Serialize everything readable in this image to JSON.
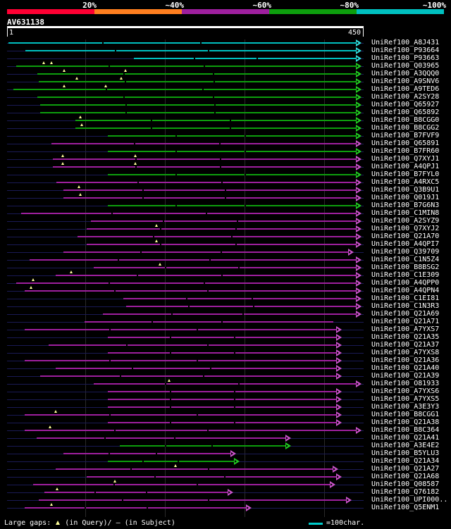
{
  "legend": {
    "labels": [
      "20%",
      "~40%",
      "~60%",
      "~80%",
      "~100%"
    ],
    "colors": [
      "#ff0033",
      "#ff7f1f",
      "#9e1f9e",
      "#0d9e0d",
      "#00c0c0"
    ]
  },
  "query": {
    "name": "AV631138",
    "start_label": "1",
    "end_label": "450",
    "length": 450
  },
  "footer": {
    "gaps_prefix": "Large gaps:",
    "gaps_query": "(in Query)/",
    "gaps_subject": "— (in Subject)",
    "scale_text": "=100char."
  },
  "hits": [
    {
      "name": "UniRef100_A8J431",
      "color": "cyan",
      "start": 1,
      "end": 450,
      "arrow": true,
      "gaps": []
    },
    {
      "name": "UniRef100_P93664",
      "color": "cyan",
      "start": 23,
      "end": 450,
      "arrow": true,
      "gaps": []
    },
    {
      "name": "UniRef100_P93663",
      "color": "cyan",
      "start": 161,
      "end": 450,
      "arrow": true,
      "gaps": []
    },
    {
      "name": "UniRef100_Q03965",
      "color": "green",
      "start": 11,
      "end": 450,
      "arrow": true,
      "gaps": [
        46,
        56
      ]
    },
    {
      "name": "UniRef100_A3QQQ0",
      "color": "green",
      "start": 38,
      "end": 450,
      "arrow": true,
      "gaps": [
        72,
        150
      ]
    },
    {
      "name": "UniRef100_A9SNV6",
      "color": "green",
      "start": 40,
      "end": 450,
      "arrow": true,
      "gaps": [
        88,
        145
      ]
    },
    {
      "name": "UniRef100_A9TED6",
      "color": "green",
      "start": 7,
      "end": 450,
      "arrow": true,
      "gaps": [
        72,
        125
      ]
    },
    {
      "name": "UniRef100_A2SY28",
      "color": "green",
      "start": 38,
      "end": 450,
      "arrow": true,
      "gaps": []
    },
    {
      "name": "UniRef100_Q65927",
      "color": "green",
      "start": 41,
      "end": 450,
      "arrow": true,
      "gaps": []
    },
    {
      "name": "UniRef100_Q65892",
      "color": "green",
      "start": 41,
      "end": 450,
      "arrow": true,
      "gaps": []
    },
    {
      "name": "UniRef100_B8CGG0",
      "color": "green",
      "start": 86,
      "end": 450,
      "arrow": true,
      "gaps": [
        93
      ]
    },
    {
      "name": "UniRef100_B8CGG2",
      "color": "green",
      "start": 86,
      "end": 450,
      "arrow": true,
      "gaps": [
        94
      ]
    },
    {
      "name": "UniRef100_B7FVF9",
      "color": "green",
      "start": 128,
      "end": 450,
      "arrow": true,
      "gaps": []
    },
    {
      "name": "UniRef100_Q65891",
      "color": "purple",
      "start": 56,
      "end": 450,
      "arrow": true,
      "gaps": []
    },
    {
      "name": "UniRef100_B7FR60",
      "color": "green",
      "start": 128,
      "end": 450,
      "arrow": true,
      "gaps": []
    },
    {
      "name": "UniRef100_Q7XYJ1",
      "color": "purple",
      "start": 58,
      "end": 450,
      "arrow": true,
      "gaps": [
        70,
        163
      ]
    },
    {
      "name": "UniRef100_A4QPJ1",
      "color": "purple",
      "start": 58,
      "end": 450,
      "arrow": true,
      "gaps": [
        70,
        163
      ]
    },
    {
      "name": "UniRef100_B7FYL0",
      "color": "green",
      "start": 128,
      "end": 450,
      "arrow": true,
      "gaps": []
    },
    {
      "name": "UniRef100_A4RXC5",
      "color": "purple",
      "start": 62,
      "end": 450,
      "arrow": true,
      "gaps": []
    },
    {
      "name": "UniRef100_Q3B9U1",
      "color": "purple",
      "start": 71,
      "end": 450,
      "arrow": true,
      "gaps": [
        91
      ]
    },
    {
      "name": "UniRef100_Q019J1",
      "color": "purple",
      "start": 71,
      "end": 450,
      "arrow": true,
      "gaps": [
        93
      ]
    },
    {
      "name": "UniRef100_B7G6N3",
      "color": "green",
      "start": 128,
      "end": 450,
      "arrow": true,
      "gaps": []
    },
    {
      "name": "UniRef100_C1MIN8",
      "color": "purple",
      "start": 17,
      "end": 450,
      "arrow": true,
      "gaps": []
    },
    {
      "name": "UniRef100_A2SYZ9",
      "color": "purple",
      "start": 106,
      "end": 450,
      "arrow": true,
      "gaps": []
    },
    {
      "name": "UniRef100_Q7XYJ2",
      "color": "purple",
      "start": 101,
      "end": 450,
      "arrow": true,
      "gaps": [
        190
      ]
    },
    {
      "name": "UniRef100_Q21A70",
      "color": "purple",
      "start": 89,
      "end": 450,
      "arrow": true,
      "gaps": []
    },
    {
      "name": "UniRef100_A4QPI7",
      "color": "purple",
      "start": 101,
      "end": 450,
      "arrow": true,
      "gaps": [
        190
      ]
    },
    {
      "name": "UniRef100_Q39709",
      "color": "purple",
      "start": 71,
      "end": 440,
      "arrow": true,
      "gaps": []
    },
    {
      "name": "UniRef100_C1N5Z4",
      "color": "purple",
      "start": 28,
      "end": 450,
      "arrow": true,
      "gaps": []
    },
    {
      "name": "UniRef100_B8BSG2",
      "color": "purple",
      "start": 110,
      "end": 450,
      "arrow": true,
      "gaps": [
        194
      ]
    },
    {
      "name": "UniRef100_C1E309",
      "color": "purple",
      "start": 61,
      "end": 450,
      "arrow": true,
      "gaps": [
        81
      ]
    },
    {
      "name": "UniRef100_A4QPP0",
      "color": "purple",
      "start": 11,
      "end": 450,
      "arrow": true,
      "gaps": [
        32
      ]
    },
    {
      "name": "UniRef100_A4QPN4",
      "color": "purple",
      "start": 22,
      "end": 450,
      "arrow": true,
      "gaps": [
        30
      ]
    },
    {
      "name": "UniRef100_C1EI81",
      "color": "purple",
      "start": 147,
      "end": 450,
      "arrow": true,
      "gaps": []
    },
    {
      "name": "UniRef100_C1N3R3",
      "color": "purple",
      "start": 151,
      "end": 450,
      "arrow": true,
      "gaps": []
    },
    {
      "name": "UniRef100_Q21A69",
      "color": "purple",
      "start": 121,
      "end": 450,
      "arrow": true,
      "gaps": []
    },
    {
      "name": "UniRef100_Q21A71",
      "color": "purple",
      "start": 98,
      "end": 415,
      "arrow": false,
      "gaps": []
    },
    {
      "name": "UniRef100_A7YXS7",
      "color": "purple",
      "start": 22,
      "end": 425,
      "arrow": true,
      "gaps": []
    },
    {
      "name": "UniRef100_Q21A35",
      "color": "purple",
      "start": 128,
      "end": 425,
      "arrow": true,
      "gaps": []
    },
    {
      "name": "UniRef100_Q21A37",
      "color": "purple",
      "start": 52,
      "end": 425,
      "arrow": true,
      "gaps": []
    },
    {
      "name": "UniRef100_A7YXS8",
      "color": "purple",
      "start": 128,
      "end": 425,
      "arrow": true,
      "gaps": []
    },
    {
      "name": "UniRef100_Q21A36",
      "color": "purple",
      "start": 22,
      "end": 425,
      "arrow": true,
      "gaps": []
    },
    {
      "name": "UniRef100_Q21A40",
      "color": "purple",
      "start": 61,
      "end": 425,
      "arrow": true,
      "gaps": []
    },
    {
      "name": "UniRef100_Q21A39",
      "color": "purple",
      "start": 41,
      "end": 425,
      "arrow": true,
      "gaps": []
    },
    {
      "name": "UniRef100_O81933",
      "color": "purple",
      "start": 110,
      "end": 450,
      "arrow": true,
      "gaps": [
        206
      ]
    },
    {
      "name": "UniRef100_A7YXS6",
      "color": "purple",
      "start": 128,
      "end": 425,
      "arrow": true,
      "gaps": []
    },
    {
      "name": "UniRef100_A7YXS5",
      "color": "purple",
      "start": 128,
      "end": 425,
      "arrow": true,
      "gaps": []
    },
    {
      "name": "UniRef100_A3E3Y3",
      "color": "purple",
      "start": 128,
      "end": 425,
      "arrow": true,
      "gaps": []
    },
    {
      "name": "UniRef100_B8CGG1",
      "color": "purple",
      "start": 22,
      "end": 425,
      "arrow": true,
      "gaps": [
        61
      ]
    },
    {
      "name": "UniRef100_Q21A38",
      "color": "purple",
      "start": 128,
      "end": 425,
      "arrow": true,
      "gaps": []
    },
    {
      "name": "UniRef100_B8C364",
      "color": "purple",
      "start": 22,
      "end": 450,
      "arrow": true,
      "gaps": [
        54
      ]
    },
    {
      "name": "UniRef100_Q21A41",
      "color": "purple",
      "start": 37,
      "end": 360,
      "arrow": true,
      "gaps": []
    },
    {
      "name": "UniRef100_A3E4E2",
      "color": "green",
      "start": 143,
      "end": 360,
      "arrow": true,
      "gaps": []
    },
    {
      "name": "UniRef100_B5YLU3",
      "color": "purple",
      "start": 71,
      "end": 290,
      "arrow": true,
      "gaps": []
    },
    {
      "name": "UniRef100_Q21A34",
      "color": "green",
      "start": 128,
      "end": 295,
      "arrow": true,
      "gaps": []
    },
    {
      "name": "UniRef100_Q21A27",
      "color": "purple",
      "start": 61,
      "end": 420,
      "arrow": true,
      "gaps": [
        214
      ]
    },
    {
      "name": "UniRef100_Q21A68",
      "color": "purple",
      "start": 101,
      "end": 425,
      "arrow": true,
      "gaps": []
    },
    {
      "name": "UniRef100_Q08587",
      "color": "purple",
      "start": 32,
      "end": 417,
      "arrow": true,
      "gaps": [
        137
      ]
    },
    {
      "name": "UniRef100_Q76182",
      "color": "purple",
      "start": 47,
      "end": 287,
      "arrow": true,
      "gaps": [
        63
      ]
    },
    {
      "name": "UniRef100_UPI000..",
      "color": "purple",
      "start": 40,
      "end": 437,
      "arrow": true,
      "gaps": []
    },
    {
      "name": "UniRef100_Q5ENM1",
      "color": "purple",
      "start": 22,
      "end": 310,
      "arrow": true,
      "gaps": [
        56
      ]
    }
  ]
}
